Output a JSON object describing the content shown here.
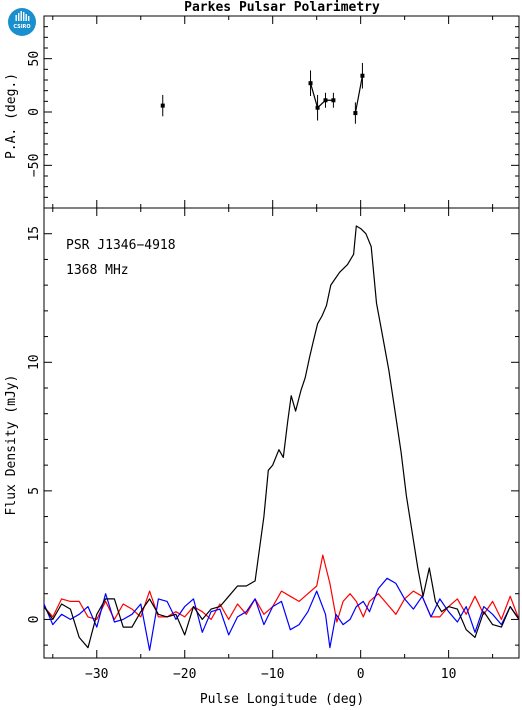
{
  "chart_data": [
    {
      "type": "scatter",
      "title": "Parkes Pulsar Polarimetry",
      "ylabel": "P.A. (deg.)",
      "xlim": [
        -36,
        18
      ],
      "ylim": [
        -90,
        90
      ],
      "yticks_labeled": [
        -50,
        0,
        50
      ],
      "points": [
        {
          "x": -22.5,
          "y": 6,
          "err": 10
        },
        {
          "x": -5.7,
          "y": 27,
          "err": 12
        },
        {
          "x": -4.9,
          "y": 4,
          "err": 12
        },
        {
          "x": -4.0,
          "y": 11,
          "err": 7
        },
        {
          "x": -3.1,
          "y": 11,
          "err": 7
        },
        {
          "x": -0.6,
          "y": -1,
          "err": 10
        },
        {
          "x": 0.2,
          "y": 34,
          "err": 12
        }
      ],
      "connected_groups": [
        [
          1,
          2,
          3,
          4
        ],
        [
          5,
          6
        ]
      ]
    },
    {
      "type": "line",
      "annotations": [
        "PSR J1346−4918",
        "1368 MHz"
      ],
      "xlabel": "Pulse Longitude (deg)",
      "ylabel": "Flux Density (mJy)",
      "xlim": [
        -36,
        18
      ],
      "ylim": [
        -1.5,
        16
      ],
      "xticks_labeled": [
        -30,
        -20,
        -10,
        0,
        10
      ],
      "yticks_labeled": [
        0,
        5,
        10,
        15
      ],
      "series": [
        {
          "color": "#000000",
          "points": [
            [
              -36,
              0.5
            ],
            [
              -35,
              0.0
            ],
            [
              -34,
              0.6
            ],
            [
              -33,
              0.4
            ],
            [
              -32,
              -0.7
            ],
            [
              -31,
              -1.1
            ],
            [
              -30,
              0.2
            ],
            [
              -29,
              0.8
            ],
            [
              -28,
              0.8
            ],
            [
              -27,
              -0.3
            ],
            [
              -26,
              -0.3
            ],
            [
              -25,
              0.3
            ],
            [
              -24,
              0.8
            ],
            [
              -23,
              0.2
            ],
            [
              -22,
              0.1
            ],
            [
              -21,
              0.2
            ],
            [
              -20,
              -0.6
            ],
            [
              -19,
              0.5
            ],
            [
              -18,
              0.0
            ],
            [
              -17,
              0.4
            ],
            [
              -16,
              0.5
            ],
            [
              -15,
              0.9
            ],
            [
              -14,
              1.3
            ],
            [
              -13,
              1.3
            ],
            [
              -12,
              1.5
            ],
            [
              -11,
              4.0
            ],
            [
              -10.5,
              5.8
            ],
            [
              -10,
              6.0
            ],
            [
              -9.3,
              6.6
            ],
            [
              -8.8,
              6.3
            ],
            [
              -8.3,
              7.7
            ],
            [
              -7.9,
              8.7
            ],
            [
              -7.4,
              8.1
            ],
            [
              -6.8,
              8.9
            ],
            [
              -6.3,
              9.4
            ],
            [
              -5.8,
              10.2
            ],
            [
              -5.4,
              10.8
            ],
            [
              -4.9,
              11.5
            ],
            [
              -4.4,
              11.8
            ],
            [
              -3.9,
              12.2
            ],
            [
              -3.4,
              13.0
            ],
            [
              -3.0,
              13.2
            ],
            [
              -2.4,
              13.5
            ],
            [
              -1.5,
              13.8
            ],
            [
              -0.8,
              14.2
            ],
            [
              -0.5,
              15.3
            ],
            [
              0.0,
              15.2
            ],
            [
              0.6,
              15.0
            ],
            [
              1.2,
              14.5
            ],
            [
              1.8,
              12.3
            ],
            [
              2.5,
              11.0
            ],
            [
              3.2,
              9.7
            ],
            [
              3.9,
              8.1
            ],
            [
              4.6,
              6.5
            ],
            [
              5.2,
              4.8
            ],
            [
              5.8,
              3.5
            ],
            [
              6.5,
              2.0
            ],
            [
              7.1,
              0.9
            ],
            [
              7.8,
              2.0
            ],
            [
              8.5,
              0.7
            ],
            [
              9.2,
              0.3
            ],
            [
              10.0,
              0.5
            ],
            [
              11.0,
              0.4
            ],
            [
              12.0,
              -0.4
            ],
            [
              13.0,
              -0.7
            ],
            [
              14.0,
              0.3
            ],
            [
              15.0,
              -0.2
            ],
            [
              16.0,
              -0.3
            ],
            [
              17.0,
              0.5
            ],
            [
              18.0,
              0.0
            ]
          ]
        },
        {
          "color": "#ff0000",
          "points": [
            [
              -36,
              0.5
            ],
            [
              -35,
              0.1
            ],
            [
              -34,
              0.8
            ],
            [
              -33,
              0.7
            ],
            [
              -32,
              0.7
            ],
            [
              -31,
              0.1
            ],
            [
              -30,
              0.0
            ],
            [
              -29,
              0.7
            ],
            [
              -28,
              0.0
            ],
            [
              -27,
              0.6
            ],
            [
              -26,
              0.4
            ],
            [
              -25,
              0.1
            ],
            [
              -24,
              1.1
            ],
            [
              -23,
              0.1
            ],
            [
              -22,
              0.1
            ],
            [
              -21,
              0.3
            ],
            [
              -20,
              0.1
            ],
            [
              -19,
              0.5
            ],
            [
              -18,
              0.3
            ],
            [
              -17,
              0.0
            ],
            [
              -16,
              0.6
            ],
            [
              -15,
              0.0
            ],
            [
              -14,
              0.6
            ],
            [
              -13,
              0.2
            ],
            [
              -12,
              0.8
            ],
            [
              -11,
              0.2
            ],
            [
              -10,
              0.5
            ],
            [
              -9,
              1.1
            ],
            [
              -8,
              0.9
            ],
            [
              -7,
              0.7
            ],
            [
              -6,
              1.0
            ],
            [
              -5,
              1.3
            ],
            [
              -4.3,
              2.5
            ],
            [
              -3.5,
              1.4
            ],
            [
              -2.7,
              -0.1
            ],
            [
              -2,
              0.7
            ],
            [
              -1.2,
              1.0
            ],
            [
              -0.5,
              0.7
            ],
            [
              0.3,
              0.1
            ],
            [
              1,
              0.7
            ],
            [
              2,
              1.0
            ],
            [
              3,
              0.6
            ],
            [
              4,
              0.2
            ],
            [
              5,
              0.8
            ],
            [
              6,
              1.1
            ],
            [
              7,
              0.9
            ],
            [
              8,
              0.1
            ],
            [
              9,
              0.1
            ],
            [
              10,
              0.5
            ],
            [
              11,
              0.8
            ],
            [
              12,
              0.2
            ],
            [
              13,
              0.9
            ],
            [
              14,
              0.2
            ],
            [
              15,
              0.7
            ],
            [
              16,
              0.0
            ],
            [
              17,
              0.9
            ],
            [
              18,
              0.0
            ]
          ]
        },
        {
          "color": "#0000ff",
          "points": [
            [
              -36,
              0.6
            ],
            [
              -35,
              -0.2
            ],
            [
              -34,
              0.2
            ],
            [
              -33,
              0.0
            ],
            [
              -32,
              0.2
            ],
            [
              -31,
              0.5
            ],
            [
              -30,
              -0.3
            ],
            [
              -29,
              1.0
            ],
            [
              -28,
              -0.1
            ],
            [
              -27,
              0.0
            ],
            [
              -26,
              0.2
            ],
            [
              -25,
              0.6
            ],
            [
              -24,
              -1.2
            ],
            [
              -23,
              0.8
            ],
            [
              -22,
              0.7
            ],
            [
              -21,
              0.0
            ],
            [
              -20,
              0.5
            ],
            [
              -19,
              0.8
            ],
            [
              -18,
              -0.5
            ],
            [
              -17,
              0.3
            ],
            [
              -16,
              0.4
            ],
            [
              -15,
              -0.6
            ],
            [
              -14,
              0.1
            ],
            [
              -13,
              0.3
            ],
            [
              -12,
              0.8
            ],
            [
              -11,
              -0.2
            ],
            [
              -10,
              0.5
            ],
            [
              -9,
              0.7
            ],
            [
              -8,
              -0.4
            ],
            [
              -7,
              -0.2
            ],
            [
              -6,
              0.3
            ],
            [
              -5,
              1.1
            ],
            [
              -4,
              0.2
            ],
            [
              -3.5,
              -1.1
            ],
            [
              -2.8,
              0.2
            ],
            [
              -2,
              -0.2
            ],
            [
              -1.2,
              0.0
            ],
            [
              -0.5,
              0.5
            ],
            [
              0.3,
              0.7
            ],
            [
              1,
              0.3
            ],
            [
              2,
              1.2
            ],
            [
              3,
              1.6
            ],
            [
              4,
              1.4
            ],
            [
              5,
              0.8
            ],
            [
              6,
              0.4
            ],
            [
              7,
              0.9
            ],
            [
              8,
              0.1
            ],
            [
              9,
              0.8
            ],
            [
              10,
              0.3
            ],
            [
              11,
              -0.1
            ],
            [
              12,
              0.5
            ],
            [
              13,
              -0.5
            ],
            [
              14,
              0.5
            ],
            [
              15,
              0.2
            ],
            [
              16,
              -0.2
            ],
            [
              17,
              0.5
            ],
            [
              18,
              0.0
            ]
          ]
        }
      ]
    }
  ]
}
